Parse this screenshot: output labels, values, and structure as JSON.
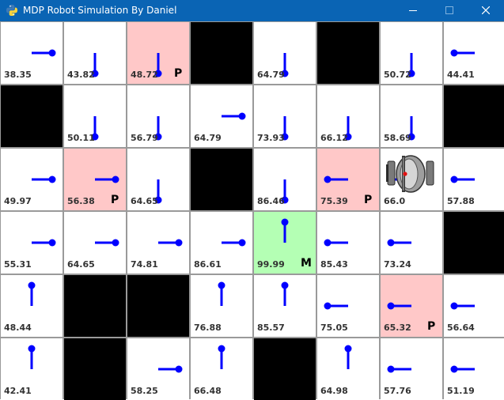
{
  "window": {
    "title": "MDP Robot Simulation By Daniel",
    "icon": "python-icon",
    "buttons": [
      "minimize-icon",
      "maximize-icon",
      "close-icon"
    ]
  },
  "grid": {
    "cols": 8,
    "rows": 6,
    "cells": [
      [
        {
          "type": "normal",
          "value": "38.35",
          "dir": "right"
        },
        {
          "type": "normal",
          "value": "43.82",
          "dir": "down"
        },
        {
          "type": "penalty",
          "value": "48.72",
          "dir": "down",
          "mark": "P"
        },
        {
          "type": "wall"
        },
        {
          "type": "normal",
          "value": "64.79",
          "dir": "down"
        },
        {
          "type": "wall"
        },
        {
          "type": "normal",
          "value": "50.72",
          "dir": "down"
        },
        {
          "type": "normal",
          "value": "44.41",
          "dir": "left"
        }
      ],
      [
        {
          "type": "wall"
        },
        {
          "type": "normal",
          "value": "50.11",
          "dir": "down"
        },
        {
          "type": "normal",
          "value": "56.79",
          "dir": "down"
        },
        {
          "type": "normal",
          "value": "64.79",
          "dir": "right"
        },
        {
          "type": "normal",
          "value": "73.93",
          "dir": "down"
        },
        {
          "type": "normal",
          "value": "66.12",
          "dir": "down"
        },
        {
          "type": "normal",
          "value": "58.69",
          "dir": "down"
        },
        {
          "type": "wall"
        }
      ],
      [
        {
          "type": "normal",
          "value": "49.97",
          "dir": "right"
        },
        {
          "type": "penalty",
          "value": "56.38",
          "dir": "right",
          "mark": "P"
        },
        {
          "type": "normal",
          "value": "64.65",
          "dir": "down"
        },
        {
          "type": "wall"
        },
        {
          "type": "normal",
          "value": "86.46",
          "dir": "down"
        },
        {
          "type": "penalty",
          "value": "75.39",
          "dir": "left",
          "mark": "P"
        },
        {
          "type": "normal",
          "value": "66.0",
          "dir": "left"
        },
        {
          "type": "normal",
          "value": "57.88",
          "dir": "left"
        }
      ],
      [
        {
          "type": "normal",
          "value": "55.31",
          "dir": "right"
        },
        {
          "type": "normal",
          "value": "64.65",
          "dir": "right"
        },
        {
          "type": "normal",
          "value": "74.81",
          "dir": "right"
        },
        {
          "type": "normal",
          "value": "86.61",
          "dir": "right"
        },
        {
          "type": "goal",
          "value": "99.99",
          "dir": "up",
          "mark": "M"
        },
        {
          "type": "normal",
          "value": "85.43",
          "dir": "left"
        },
        {
          "type": "normal",
          "value": "73.24",
          "dir": "left"
        },
        {
          "type": "wall"
        }
      ],
      [
        {
          "type": "normal",
          "value": "48.44",
          "dir": "up"
        },
        {
          "type": "wall"
        },
        {
          "type": "wall"
        },
        {
          "type": "normal",
          "value": "76.88",
          "dir": "up"
        },
        {
          "type": "normal",
          "value": "85.57",
          "dir": "up"
        },
        {
          "type": "normal",
          "value": "75.05",
          "dir": "left"
        },
        {
          "type": "penalty",
          "value": "65.32",
          "dir": "left",
          "mark": "P"
        },
        {
          "type": "normal",
          "value": "56.64",
          "dir": "left"
        }
      ],
      [
        {
          "type": "normal",
          "value": "42.41",
          "dir": "up"
        },
        {
          "type": "wall"
        },
        {
          "type": "normal",
          "value": "58.25",
          "dir": "right"
        },
        {
          "type": "normal",
          "value": "66.48",
          "dir": "up"
        },
        {
          "type": "wall"
        },
        {
          "type": "normal",
          "value": "64.98",
          "dir": "up"
        },
        {
          "type": "normal",
          "value": "57.76",
          "dir": "left"
        },
        {
          "type": "normal",
          "value": "51.19",
          "dir": "left"
        }
      ]
    ]
  },
  "robot": {
    "row": 2,
    "col": 6,
    "icon": "robot-icon"
  },
  "colors": {
    "titlebar": "#0a64b4",
    "arrow": "#0000ff",
    "penalty": "#ffc8c8",
    "goal": "#b4ffb4",
    "wall": "#000000"
  }
}
